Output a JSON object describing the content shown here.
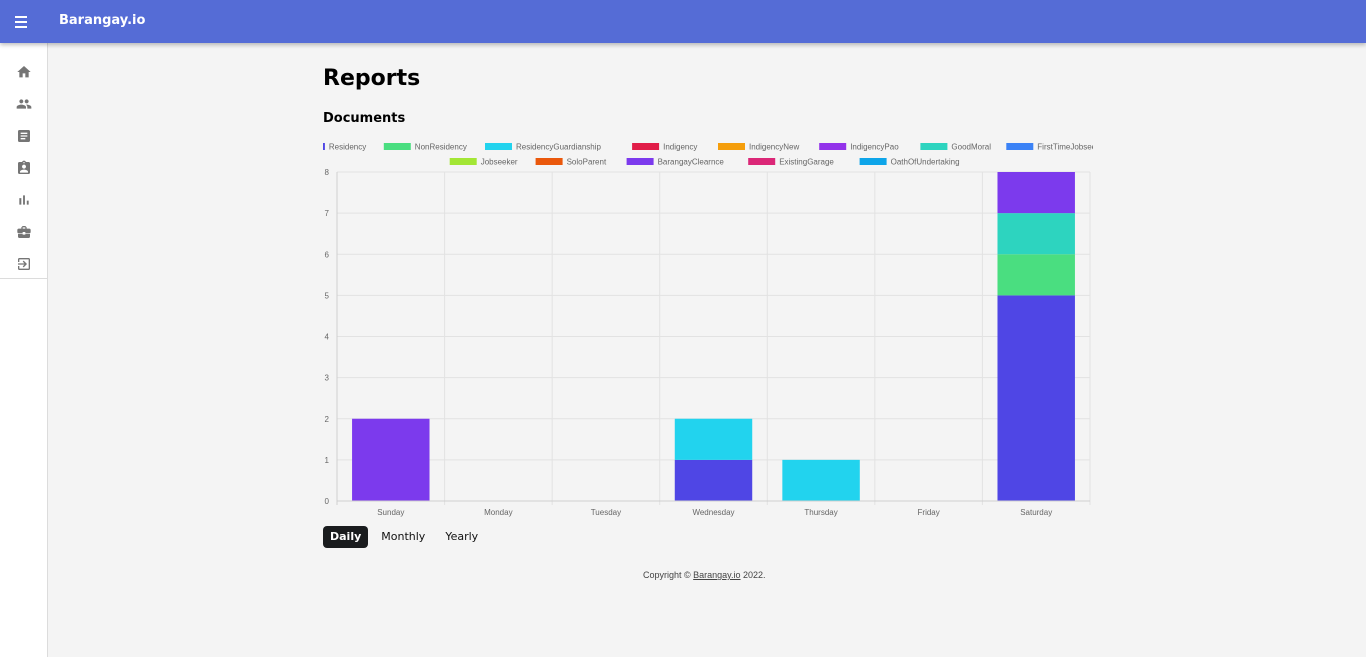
{
  "app": {
    "brand": "Barangay.io"
  },
  "sidebar": {
    "items": [
      {
        "icon": "home-icon",
        "name": "sidebar-item-home"
      },
      {
        "icon": "people-icon",
        "name": "sidebar-item-residents"
      },
      {
        "icon": "document-icon",
        "name": "sidebar-item-documents"
      },
      {
        "icon": "assignment-ind-icon",
        "name": "sidebar-item-officials"
      },
      {
        "icon": "bar-chart-icon",
        "name": "sidebar-item-reports"
      },
      {
        "icon": "briefcase-icon",
        "name": "sidebar-item-business"
      },
      {
        "icon": "logout-icon",
        "name": "sidebar-item-logout"
      }
    ]
  },
  "page": {
    "title": "Reports",
    "section_title": "Documents"
  },
  "tabs": [
    {
      "label": "Daily",
      "active": true
    },
    {
      "label": "Monthly",
      "active": false
    },
    {
      "label": "Yearly",
      "active": false
    }
  ],
  "footer": {
    "prefix": "Copyright © ",
    "link": "Barangay.io",
    "suffix": " 2022."
  },
  "chart_data": {
    "type": "bar",
    "stacked": true,
    "categories": [
      "Sunday",
      "Monday",
      "Tuesday",
      "Wednesday",
      "Thursday",
      "Friday",
      "Saturday"
    ],
    "ylim": [
      0,
      8
    ],
    "yticks": [
      0,
      1,
      2,
      3,
      4,
      5,
      6,
      7,
      8
    ],
    "grid": true,
    "legend_position": "top",
    "series": [
      {
        "name": "Residency",
        "color": "#4f46e5",
        "values": [
          0,
          0,
          0,
          1,
          0,
          0,
          5
        ]
      },
      {
        "name": "NonResidency",
        "color": "#4ade80",
        "values": [
          0,
          0,
          0,
          0,
          0,
          0,
          1
        ]
      },
      {
        "name": "ResidencyGuardianship",
        "color": "#22d3ee",
        "values": [
          0,
          0,
          0,
          1,
          1,
          0,
          0
        ]
      },
      {
        "name": "Indigency",
        "color": "#e11d48",
        "values": [
          0,
          0,
          0,
          0,
          0,
          0,
          0
        ]
      },
      {
        "name": "IndigencyNew",
        "color": "#f59e0b",
        "values": [
          0,
          0,
          0,
          0,
          0,
          0,
          0
        ]
      },
      {
        "name": "IndigencyPao",
        "color": "#9333ea",
        "values": [
          0,
          0,
          0,
          0,
          0,
          0,
          0
        ]
      },
      {
        "name": "GoodMoral",
        "color": "#2dd4bf",
        "values": [
          0,
          0,
          0,
          0,
          0,
          0,
          1
        ]
      },
      {
        "name": "FirstTimeJobseeker",
        "color": "#3b82f6",
        "values": [
          0,
          0,
          0,
          0,
          0,
          0,
          0
        ]
      },
      {
        "name": "Jobseeker",
        "color": "#a3e635",
        "values": [
          0,
          0,
          0,
          0,
          0,
          0,
          0
        ]
      },
      {
        "name": "SoloParent",
        "color": "#ea580c",
        "values": [
          0,
          0,
          0,
          0,
          0,
          0,
          0
        ]
      },
      {
        "name": "BarangayClearnce",
        "color": "#7c3aed",
        "values": [
          2,
          0,
          0,
          0,
          0,
          0,
          1
        ]
      },
      {
        "name": "ExistingGarage",
        "color": "#db2777",
        "values": [
          0,
          0,
          0,
          0,
          0,
          0,
          0
        ]
      },
      {
        "name": "OathOfUndertaking",
        "color": "#0ea5e9",
        "values": [
          0,
          0,
          0,
          0,
          0,
          0,
          0
        ]
      }
    ]
  }
}
